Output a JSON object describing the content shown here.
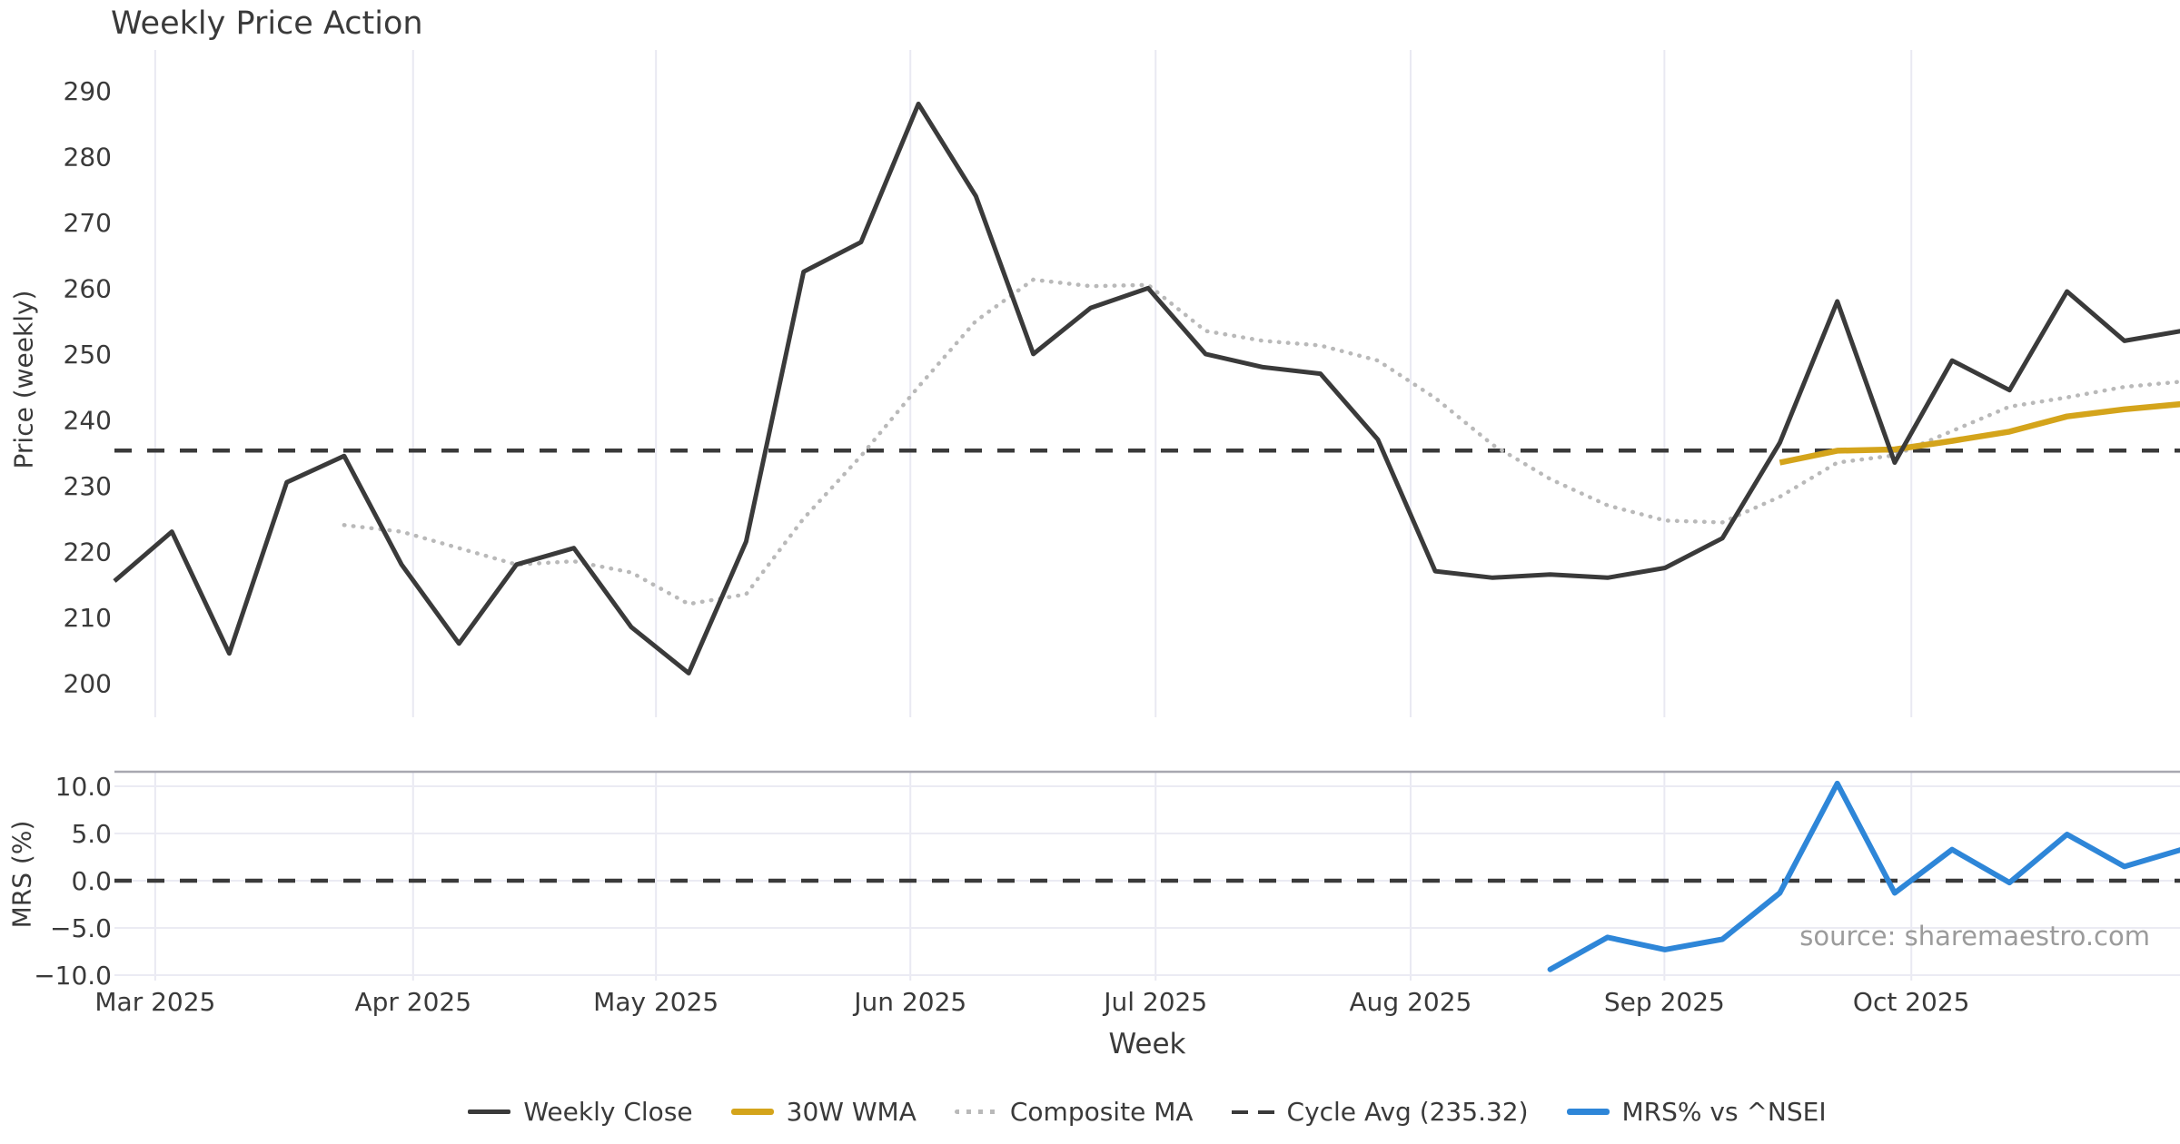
{
  "title": "Weekly Price Action",
  "xlabel": "Week",
  "source": "source: sharemaestro.com",
  "price_panel": {
    "ylabel": "Price (weekly)"
  },
  "mrs_panel": {
    "ylabel": "MRS (%)"
  },
  "legend": {
    "items": [
      {
        "label": "Weekly Close",
        "color_key": "weekly_close"
      },
      {
        "label": "30W WMA",
        "color_key": "wma_30w"
      },
      {
        "label": "Composite MA",
        "color_key": "composite_ma"
      },
      {
        "label": "Cycle Avg (235.32)",
        "color_key": "cycle_avg"
      },
      {
        "label": "MRS% vs ^NSEI",
        "color_key": "mrs"
      }
    ]
  },
  "colors": {
    "weekly_close": "#3a3a3a",
    "wma_30w": "#d4a41b",
    "composite_ma": "#b9b9b9",
    "cycle_avg": "#3a3a3a",
    "mrs": "#2e86d8",
    "grid": "#e9e9f2",
    "mrs_grid": "#ebebf3",
    "mrs_top_border": "#a8a8b0",
    "text": "#3a3a3a",
    "source_text": "#9b9b9b"
  },
  "chart_data": {
    "type": "line",
    "title": "Weekly Price Action",
    "xlabel": "Week",
    "x": {
      "weeks": 37,
      "month_ticks": [
        {
          "label": "Mar 2025",
          "week_pos": 1.71
        },
        {
          "label": "Apr 2025",
          "week_pos": 6.2
        },
        {
          "label": "May 2025",
          "week_pos": 10.43
        },
        {
          "label": "Jun 2025",
          "week_pos": 14.86
        },
        {
          "label": "Jul 2025",
          "week_pos": 19.13
        },
        {
          "label": "Aug 2025",
          "week_pos": 23.57
        },
        {
          "label": "Sep 2025",
          "week_pos": 27.99
        },
        {
          "label": "Oct 2025",
          "week_pos": 32.29
        }
      ]
    },
    "price": {
      "ylabel": "Price (weekly)",
      "ylim": [
        194.8,
        296.2
      ],
      "yticks": [
        200,
        210,
        220,
        230,
        240,
        250,
        260,
        270,
        280,
        290
      ],
      "cycle_avg": 235.32,
      "series": {
        "weekly_close": {
          "name": "Weekly Close",
          "start_week": 1,
          "values": [
            215.5,
            223,
            204.5,
            230.5,
            234.5,
            218,
            206,
            218,
            220.5,
            208.5,
            201.5,
            221.5,
            262.5,
            267,
            288,
            274,
            250,
            257,
            260,
            250,
            248,
            247,
            237,
            217,
            216,
            216.5,
            216,
            217.5,
            222,
            236.5,
            258,
            233.5,
            249,
            244.5,
            259.5,
            252,
            253.5
          ]
        },
        "composite_ma": {
          "name": "Composite MA",
          "start_week": 5,
          "values": [
            224,
            223,
            220.5,
            218,
            218.5,
            216.8,
            212,
            213.5,
            225,
            234.5,
            245,
            255,
            261.3,
            260.3,
            260.5,
            253.5,
            252,
            251.3,
            249,
            243.3,
            236.2,
            231,
            227,
            224.7,
            224.4,
            228.3,
            233.5,
            234.6,
            238.3,
            242,
            243.4,
            245,
            245.8
          ]
        },
        "wma_30w": {
          "name": "30W WMA",
          "start_week": 30,
          "values": [
            233.5,
            235.3,
            235.5,
            236.8,
            238.2,
            240.5,
            241.6,
            242.4
          ]
        }
      }
    },
    "mrs": {
      "ylabel": "MRS (%)",
      "ylim": [
        -10.58,
        11.54
      ],
      "yticks": [
        {
          "value": 10,
          "label": "10.0"
        },
        {
          "value": 5,
          "label": "5.0"
        },
        {
          "value": 0,
          "label": "0.0"
        },
        {
          "value": -5,
          "label": "−5.0"
        },
        {
          "value": -10,
          "label": "−10.0"
        }
      ],
      "zero_line": 0,
      "series": {
        "mrs_vs_nsei": {
          "name": "MRS% vs ^NSEI",
          "start_week": 26,
          "values": [
            -9.4,
            -6.0,
            -7.3,
            -6.2,
            -1.3,
            10.3,
            -1.3,
            3.3,
            -0.2,
            4.9,
            1.5,
            3.3
          ]
        }
      }
    }
  }
}
